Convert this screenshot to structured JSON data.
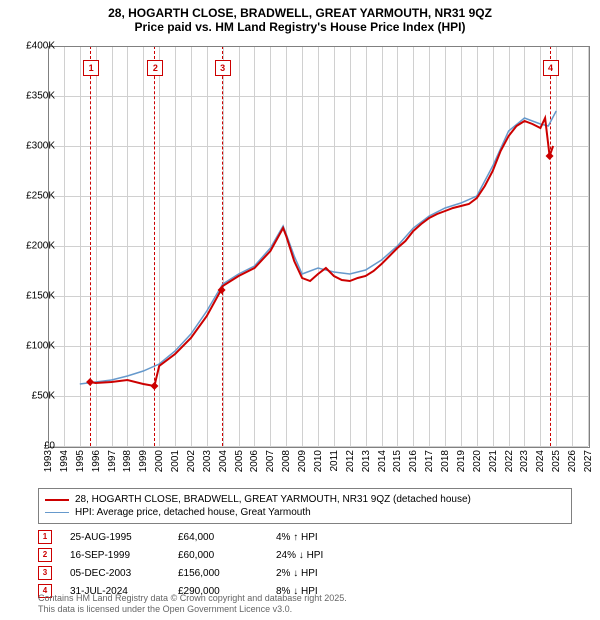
{
  "title": {
    "line1": "28, HOGARTH CLOSE, BRADWELL, GREAT YARMOUTH, NR31 9QZ",
    "line2": "Price paid vs. HM Land Registry's House Price Index (HPI)",
    "fontsize": 12
  },
  "chart": {
    "type": "line",
    "background_color": "#ffffff",
    "grid_color": "#d0d0d0",
    "border_color": "#808080",
    "x_domain": [
      1993,
      2027
    ],
    "y_domain": [
      0,
      400000
    ],
    "y_ticks": [
      0,
      50000,
      100000,
      150000,
      200000,
      250000,
      300000,
      350000,
      400000
    ],
    "y_tick_labels": [
      "£0",
      "£50K",
      "£100K",
      "£150K",
      "£200K",
      "£250K",
      "£300K",
      "£350K",
      "£400K"
    ],
    "x_ticks": [
      1993,
      1994,
      1995,
      1996,
      1997,
      1998,
      1999,
      2000,
      2001,
      2002,
      2003,
      2004,
      2005,
      2006,
      2007,
      2008,
      2009,
      2010,
      2011,
      2012,
      2013,
      2014,
      2015,
      2016,
      2017,
      2018,
      2019,
      2020,
      2021,
      2022,
      2023,
      2024,
      2025,
      2026,
      2027
    ],
    "tick_fontsize": 10,
    "series": [
      {
        "name": "28, HOGARTH CLOSE, BRADWELL, GREAT YARMOUTH, NR31 9QZ (detached house)",
        "color": "#cc0000",
        "line_width": 2,
        "points": [
          [
            1995.65,
            64000
          ],
          [
            1996,
            63000
          ],
          [
            1997,
            64000
          ],
          [
            1998,
            66000
          ],
          [
            1999,
            62000
          ],
          [
            1999.7,
            60000
          ],
          [
            2000,
            80000
          ],
          [
            2001,
            92000
          ],
          [
            2002,
            108000
          ],
          [
            2003,
            130000
          ],
          [
            2003.9,
            156000
          ],
          [
            2004,
            160000
          ],
          [
            2005,
            170000
          ],
          [
            2006,
            178000
          ],
          [
            2007,
            195000
          ],
          [
            2007.8,
            218000
          ],
          [
            2008,
            210000
          ],
          [
            2008.5,
            185000
          ],
          [
            2009,
            168000
          ],
          [
            2009.5,
            165000
          ],
          [
            2010,
            172000
          ],
          [
            2010.5,
            178000
          ],
          [
            2011,
            170000
          ],
          [
            2011.5,
            166000
          ],
          [
            2012,
            165000
          ],
          [
            2012.5,
            168000
          ],
          [
            2013,
            170000
          ],
          [
            2013.5,
            175000
          ],
          [
            2014,
            182000
          ],
          [
            2014.5,
            190000
          ],
          [
            2015,
            198000
          ],
          [
            2015.5,
            205000
          ],
          [
            2016,
            215000
          ],
          [
            2016.5,
            222000
          ],
          [
            2017,
            228000
          ],
          [
            2017.5,
            232000
          ],
          [
            2018,
            235000
          ],
          [
            2018.5,
            238000
          ],
          [
            2019,
            240000
          ],
          [
            2019.5,
            242000
          ],
          [
            2020,
            248000
          ],
          [
            2020.5,
            260000
          ],
          [
            2021,
            275000
          ],
          [
            2021.5,
            295000
          ],
          [
            2022,
            310000
          ],
          [
            2022.5,
            320000
          ],
          [
            2023,
            325000
          ],
          [
            2023.5,
            322000
          ],
          [
            2024,
            318000
          ],
          [
            2024.3,
            328000
          ],
          [
            2024.58,
            290000
          ],
          [
            2024.8,
            300000
          ]
        ]
      },
      {
        "name": "HPI: Average price, detached house, Great Yarmouth",
        "color": "#6699cc",
        "line_width": 1.5,
        "points": [
          [
            1995,
            62000
          ],
          [
            1996,
            64000
          ],
          [
            1997,
            66000
          ],
          [
            1998,
            70000
          ],
          [
            1999,
            75000
          ],
          [
            2000,
            82000
          ],
          [
            2001,
            95000
          ],
          [
            2002,
            112000
          ],
          [
            2003,
            135000
          ],
          [
            2004,
            162000
          ],
          [
            2005,
            172000
          ],
          [
            2006,
            180000
          ],
          [
            2007,
            198000
          ],
          [
            2007.8,
            220000
          ],
          [
            2008,
            212000
          ],
          [
            2008.5,
            190000
          ],
          [
            2009,
            172000
          ],
          [
            2010,
            178000
          ],
          [
            2011,
            174000
          ],
          [
            2012,
            172000
          ],
          [
            2013,
            176000
          ],
          [
            2014,
            186000
          ],
          [
            2015,
            200000
          ],
          [
            2016,
            218000
          ],
          [
            2017,
            230000
          ],
          [
            2018,
            238000
          ],
          [
            2019,
            243000
          ],
          [
            2020,
            250000
          ],
          [
            2021,
            280000
          ],
          [
            2022,
            315000
          ],
          [
            2023,
            328000
          ],
          [
            2024,
            322000
          ],
          [
            2024.5,
            320000
          ],
          [
            2025,
            335000
          ]
        ]
      }
    ],
    "sale_markers": [
      {
        "n": "1",
        "year": 1995.65,
        "price": 64000
      },
      {
        "n": "2",
        "year": 1999.7,
        "price": 60000
      },
      {
        "n": "3",
        "year": 2003.93,
        "price": 156000
      },
      {
        "n": "4",
        "year": 2024.58,
        "price": 290000
      }
    ]
  },
  "legend": {
    "items": [
      {
        "label": "28, HOGARTH CLOSE, BRADWELL, GREAT YARMOUTH, NR31 9QZ (detached house)",
        "color": "#cc0000",
        "width": 2
      },
      {
        "label": "HPI: Average price, detached house, Great Yarmouth",
        "color": "#6699cc",
        "width": 1.5
      }
    ]
  },
  "table": {
    "rows": [
      {
        "n": "1",
        "date": "25-AUG-1995",
        "price": "£64,000",
        "pct": "4% ↑ HPI"
      },
      {
        "n": "2",
        "date": "16-SEP-1999",
        "price": "£60,000",
        "pct": "24% ↓ HPI"
      },
      {
        "n": "3",
        "date": "05-DEC-2003",
        "price": "£156,000",
        "pct": "2% ↓ HPI"
      },
      {
        "n": "4",
        "date": "31-JUL-2024",
        "price": "£290,000",
        "pct": "8% ↓ HPI"
      }
    ]
  },
  "footer": {
    "line1": "Contains HM Land Registry data © Crown copyright and database right 2025.",
    "line2": "This data is licensed under the Open Government Licence v3.0."
  }
}
